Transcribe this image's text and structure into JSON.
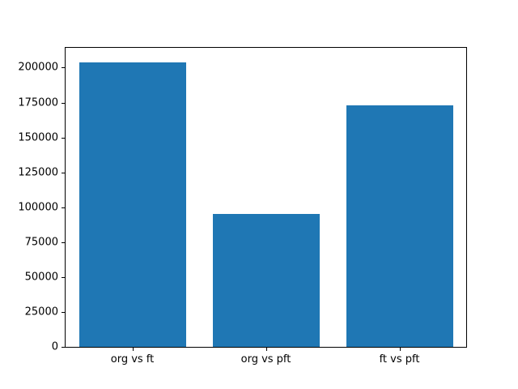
{
  "chart_data": {
    "type": "bar",
    "title": "",
    "xlabel": "",
    "ylabel": "",
    "categories": [
      "org vs ft",
      "org vs pft",
      "ft vs pft"
    ],
    "values": [
      204000,
      95000,
      173000
    ],
    "ylim": [
      0,
      214200
    ],
    "yticks": [
      0,
      25000,
      50000,
      75000,
      100000,
      125000,
      150000,
      175000,
      200000
    ],
    "grid": false,
    "legend": null,
    "layout": {
      "bar_width_fraction": 0.8,
      "x_slots": 3
    }
  },
  "colors": {
    "bar": "#1f77b4",
    "background": "#ffffff",
    "axis": "#000000",
    "tick_text": "#000000"
  }
}
